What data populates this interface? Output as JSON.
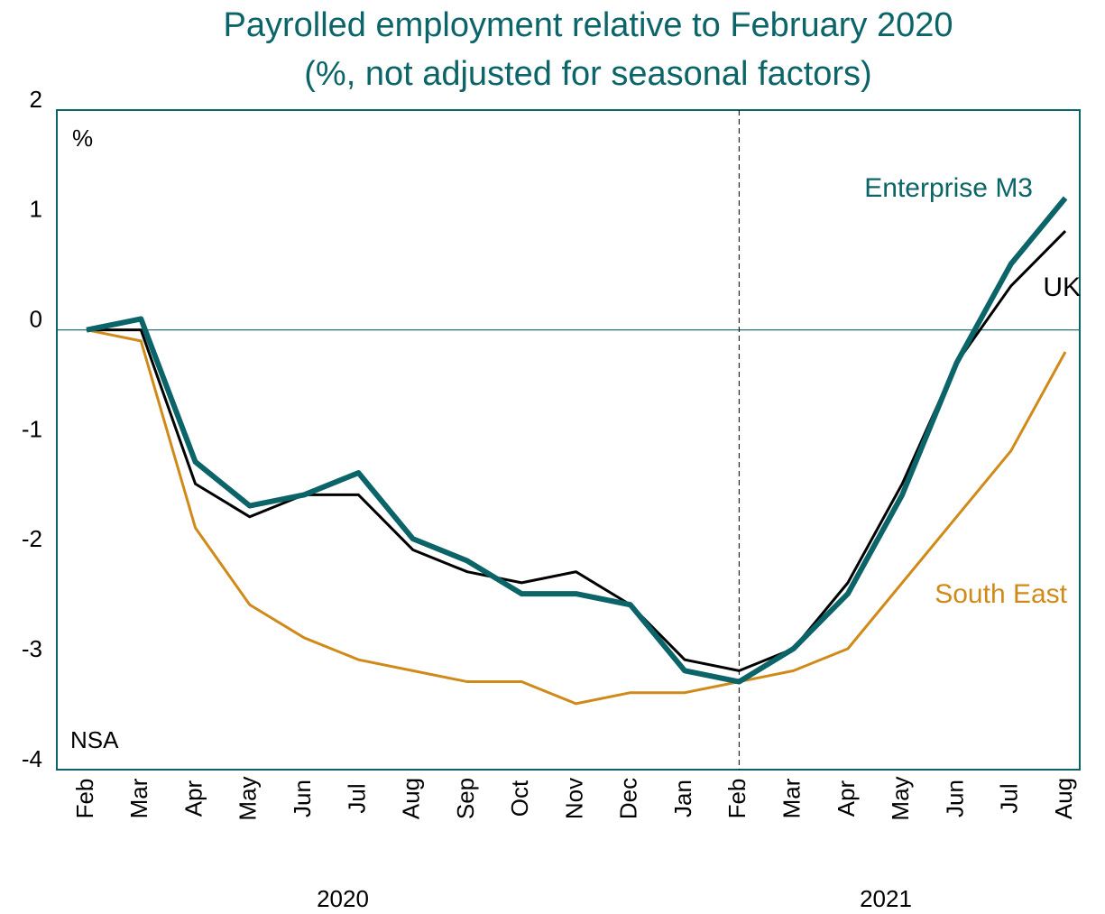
{
  "chart_data": {
    "type": "line",
    "title": "Payrolled employment relative to February 2020",
    "subtitle": "(%, not adjusted for seasonal factors)",
    "y_unit_label": "%",
    "annotation": "NSA",
    "categories": [
      "Feb",
      "Mar",
      "Apr",
      "May",
      "Jun",
      "Jul",
      "Aug",
      "Sep",
      "Oct",
      "Nov",
      "Dec",
      "Jan",
      "Feb",
      "Mar",
      "Apr",
      "May",
      "Jun",
      "Jul",
      "Aug"
    ],
    "year_labels": [
      "2020",
      "2021"
    ],
    "series": [
      {
        "name": "South East",
        "color": "#d08a1a",
        "values": [
          0,
          -0.1,
          -1.8,
          -2.5,
          -2.8,
          -3.0,
          -3.1,
          -3.2,
          -3.2,
          -3.4,
          -3.3,
          -3.3,
          -3.2,
          -3.1,
          -2.9,
          -2.3,
          -1.7,
          -1.1,
          -0.2
        ]
      },
      {
        "name": "UK",
        "color": "#000000",
        "values": [
          0,
          0,
          -1.4,
          -1.7,
          -1.5,
          -1.5,
          -2.0,
          -2.2,
          -2.3,
          -2.2,
          -2.5,
          -3.0,
          -3.1,
          -2.9,
          -2.3,
          -1.4,
          -0.3,
          0.4,
          0.9
        ]
      },
      {
        "name": "Enterprise M3",
        "color": "#0b6468",
        "values": [
          0,
          0.1,
          -1.2,
          -1.6,
          -1.5,
          -1.3,
          -1.9,
          -2.1,
          -2.4,
          -2.4,
          -2.5,
          -3.1,
          -3.2,
          -2.9,
          -2.4,
          -1.5,
          -0.3,
          0.6,
          1.2
        ]
      }
    ],
    "ylim": [
      -4,
      2
    ],
    "yticks": [
      -4,
      -3,
      -2,
      -1,
      0,
      1,
      2
    ],
    "grid": false
  }
}
